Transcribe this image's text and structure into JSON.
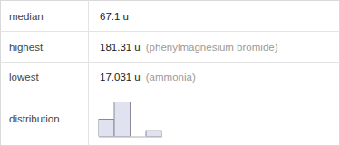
{
  "table": {
    "rows": [
      {
        "label": "median",
        "value": "67.1 u"
      },
      {
        "label": "highest",
        "value": "181.31 u",
        "note": "(phenylmagnesium bromide)"
      },
      {
        "label": "lowest",
        "value": "17.031 u",
        "note": "(ammonia)"
      },
      {
        "label": "distribution"
      }
    ]
  },
  "chart_data": {
    "type": "histogram",
    "bins": [
      0,
      50,
      100,
      150,
      200
    ],
    "values": [
      3,
      6,
      0,
      1
    ],
    "color": "#e0e2f0",
    "xlim": [
      0,
      200
    ],
    "ylim": [
      0,
      6
    ],
    "tick_labels": false
  }
}
